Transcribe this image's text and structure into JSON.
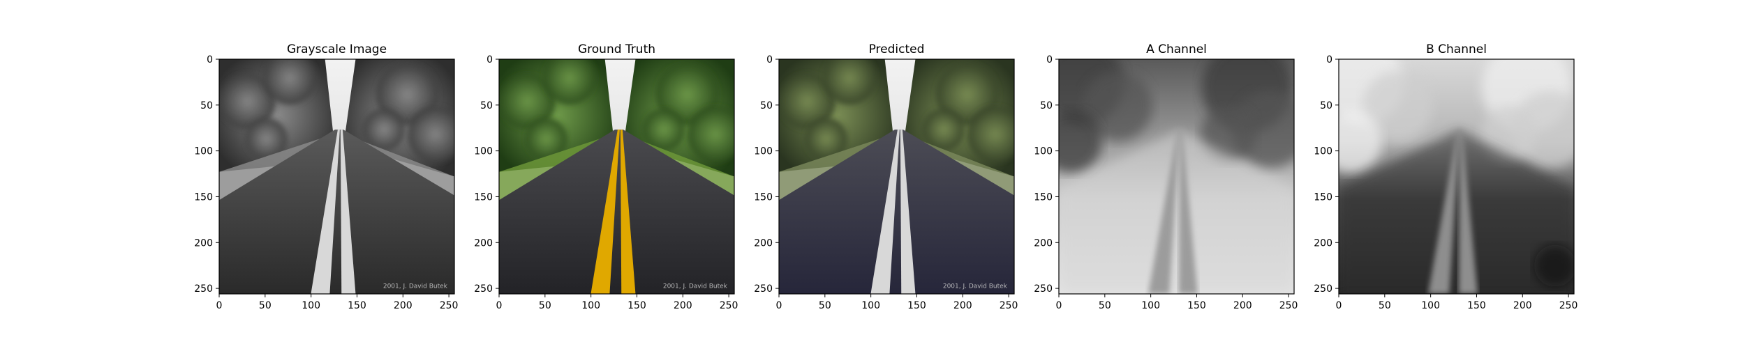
{
  "figure": {
    "panels": [
      {
        "title": "Grayscale Image",
        "mode": "gray"
      },
      {
        "title": "Ground Truth",
        "mode": "truth"
      },
      {
        "title": "Predicted",
        "mode": "pred"
      },
      {
        "title": "A Channel",
        "mode": "a"
      },
      {
        "title": "B Channel",
        "mode": "b"
      }
    ],
    "axes": {
      "x_ticks": [
        "0",
        "50",
        "100",
        "150",
        "200",
        "250"
      ],
      "y_ticks": [
        "0",
        "50",
        "100",
        "150",
        "200",
        "250"
      ],
      "range": [
        0,
        256
      ]
    },
    "watermark": "2001, J. David Butek",
    "colors": {
      "lane_yellow": "#e0a800",
      "foliage_green": "#3f6a2a",
      "road_dark": "#2b2b2e"
    }
  }
}
